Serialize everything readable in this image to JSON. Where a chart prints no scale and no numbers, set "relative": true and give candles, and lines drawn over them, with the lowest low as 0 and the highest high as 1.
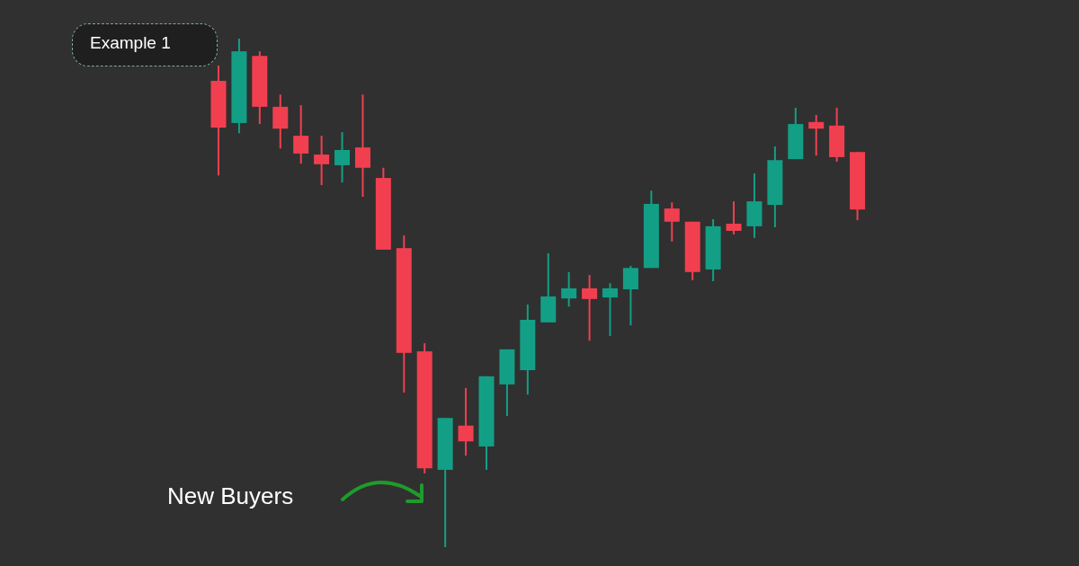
{
  "chart_data": {
    "type": "candlestick",
    "relative": true,
    "categories": [
      null,
      null,
      null,
      null,
      null,
      null,
      null,
      null,
      null,
      null,
      null,
      null,
      null,
      null,
      null,
      null,
      null,
      null,
      null,
      null,
      null,
      null,
      null,
      null,
      null,
      null,
      null,
      null,
      null,
      null,
      null,
      null
    ],
    "ohlc": [
      [
        0.917,
        0.947,
        0.731,
        0.825
      ],
      [
        0.834,
        1,
        0.814,
        0.975
      ],
      [
        0.966,
        0.975,
        0.832,
        0.866
      ],
      [
        0.866,
        0.89,
        0.784,
        0.823
      ],
      [
        0.809,
        0.869,
        0.754,
        0.774
      ],
      [
        0.772,
        0.809,
        0.712,
        0.753
      ],
      [
        0.751,
        0.816,
        0.717,
        0.781
      ],
      [
        0.786,
        0.89,
        0.689,
        0.746
      ],
      [
        0.726,
        0.746,
        0.585,
        0.585
      ],
      [
        0.588,
        0.613,
        0.304,
        0.382
      ],
      [
        0.385,
        0.401,
        0.145,
        0.155
      ],
      [
        0.152,
        0.254,
        0,
        0.254
      ],
      [
        0.239,
        0.313,
        0.18,
        0.208
      ],
      [
        0.198,
        0.336,
        0.152,
        0.336
      ],
      [
        0.32,
        0.389,
        0.258,
        0.389
      ],
      [
        0.348,
        0.477,
        0.3,
        0.447
      ],
      [
        0.442,
        0.578,
        0.442,
        0.493
      ],
      [
        0.489,
        0.541,
        0.473,
        0.509
      ],
      [
        0.509,
        0.535,
        0.406,
        0.488
      ],
      [
        0.491,
        0.519,
        0.415,
        0.509
      ],
      [
        0.507,
        0.553,
        0.436,
        0.549
      ],
      [
        0.549,
        0.701,
        0.549,
        0.675
      ],
      [
        0.666,
        0.678,
        0.601,
        0.64
      ],
      [
        0.64,
        0.64,
        0.525,
        0.541
      ],
      [
        0.546,
        0.645,
        0.523,
        0.631
      ],
      [
        0.636,
        0.68,
        0.615,
        0.622
      ],
      [
        0.631,
        0.735,
        0.608,
        0.68
      ],
      [
        0.673,
        0.788,
        0.629,
        0.761
      ],
      [
        0.763,
        0.864,
        0.763,
        0.832
      ],
      [
        0.836,
        0.85,
        0.77,
        0.823
      ],
      [
        0.829,
        0.864,
        0.758,
        0.767
      ],
      [
        0.777,
        0.777,
        0.643,
        0.664
      ]
    ],
    "colors": [
      "#f23f4f",
      "#139f86",
      "#f23f4f",
      "#f23f4f",
      "#f23f4f",
      "#f23f4f",
      "#139f86",
      "#f23f4f",
      "#f23f4f",
      "#f23f4f",
      "#f23f4f",
      "#139f86",
      "#f23f4f",
      "#139f86",
      "#139f86",
      "#139f86",
      "#139f86",
      "#139f86",
      "#f23f4f",
      "#139f86",
      "#139f86",
      "#139f86",
      "#f23f4f",
      "#f23f4f",
      "#139f86",
      "#f23f4f",
      "#139f86",
      "#139f86",
      "#139f86",
      "#f23f4f",
      "#f23f4f",
      "#f23f4f"
    ],
    "annotations": [
      "Example 1",
      "New Buyers"
    ]
  }
}
